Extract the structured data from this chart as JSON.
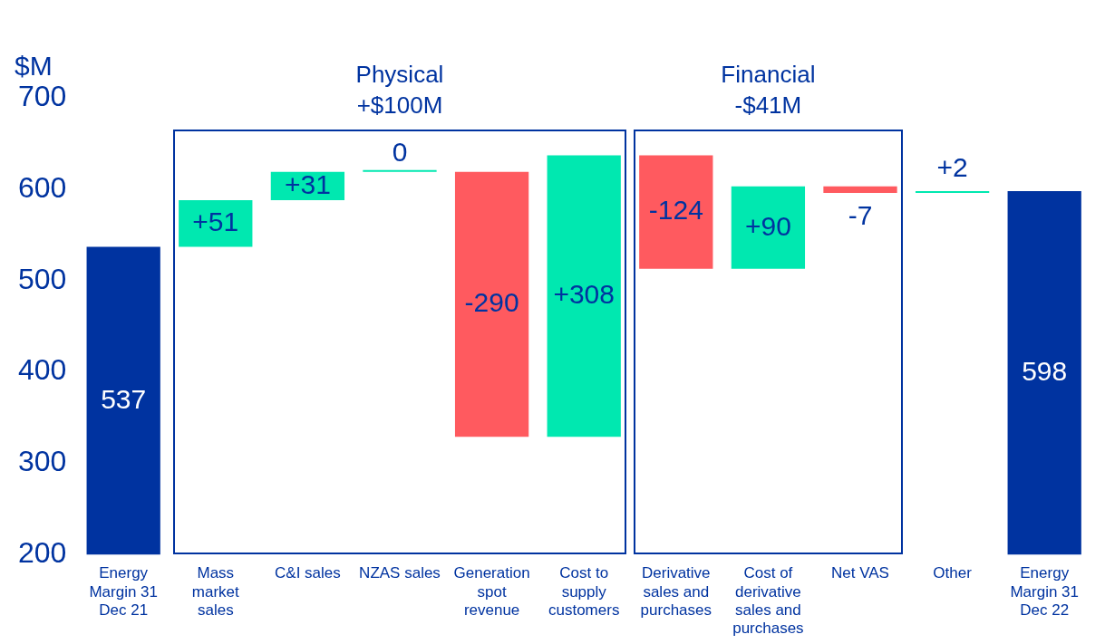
{
  "chart_data": {
    "type": "bar",
    "ylabel": "$M",
    "categories": [
      "Energy Margin 31 Dec 21",
      "Mass market sales",
      "C&I sales",
      "NZAS sales",
      "Generation spot revenue",
      "Cost to supply customers",
      "Derivative sales and purchases",
      "Cost of derivative sales and purchases",
      "Net VAS",
      "Other",
      "Energy Margin 31 Dec 22"
    ],
    "values": [
      337,
      51,
      31,
      0,
      -290,
      308,
      -124,
      90,
      -7,
      2,
      398
    ],
    "base": [
      200,
      537,
      588,
      619,
      619,
      329,
      637,
      513,
      603,
      596,
      200
    ],
    "colors": [
      "#0033a0",
      "#00e8b0",
      "#00e8b0",
      "#00e8b0",
      "#ff5a5f",
      "#00e8b0",
      "#ff5a5f",
      "#00e8b0",
      "#ff5a5f",
      "#00e8b0",
      "#0033a0"
    ],
    "value_labels": [
      "537",
      "+51",
      "+31",
      "0",
      "-290",
      "+308",
      "-124",
      "+90",
      "-7",
      "+2",
      "598"
    ],
    "ylim": [
      200,
      700
    ],
    "yticks": [
      200,
      300,
      400,
      500,
      600,
      700
    ],
    "annotations": [
      "Physical +$100M",
      "Financial -$41M"
    ]
  }
}
